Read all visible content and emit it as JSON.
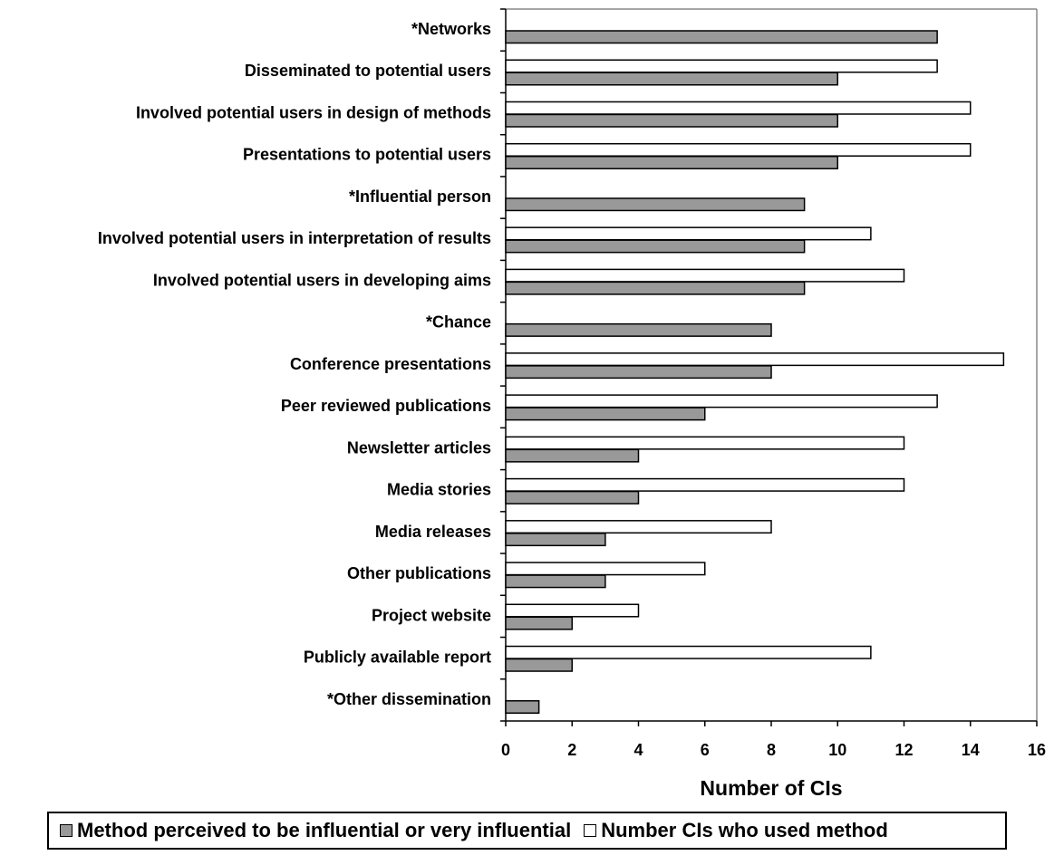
{
  "chart_data": {
    "type": "bar",
    "orientation": "horizontal",
    "categories": [
      "*Networks",
      "Disseminated to potential users",
      "Involved potential users in design of methods",
      "Presentations to potential users",
      "*Influential person",
      "Involved potential users in interpretation of results",
      "Involved potential users in developing aims",
      "*Chance",
      "Conference presentations",
      "Peer reviewed publications",
      "Newsletter articles",
      "Media stories",
      "Media releases",
      "Other publications",
      "Project website",
      "Publicly available report",
      "*Other dissemination"
    ],
    "series": [
      {
        "name": "Number CIs who used method",
        "color": "#ffffff",
        "values": [
          null,
          13,
          14,
          14,
          null,
          11,
          12,
          null,
          15,
          13,
          12,
          12,
          8,
          6,
          4,
          11,
          null
        ]
      },
      {
        "name": "Method perceived to be influential or very influential",
        "color": "#999999",
        "values": [
          13,
          10,
          10,
          10,
          9,
          9,
          9,
          8,
          8,
          6,
          4,
          4,
          3,
          3,
          2,
          2,
          1
        ]
      }
    ],
    "xlabel": "Number of CIs",
    "xlim": [
      0,
      16
    ],
    "xticks": [
      "0",
      "2",
      "4",
      "6",
      "8",
      "10",
      "12",
      "14",
      "16"
    ],
    "grid": false,
    "legend_position": "bottom"
  },
  "legend": {
    "items": [
      {
        "label": "Method perceived to be influential or very influential",
        "color": "#999999"
      },
      {
        "label": "Number CIs who used method",
        "color": "#ffffff"
      }
    ]
  }
}
